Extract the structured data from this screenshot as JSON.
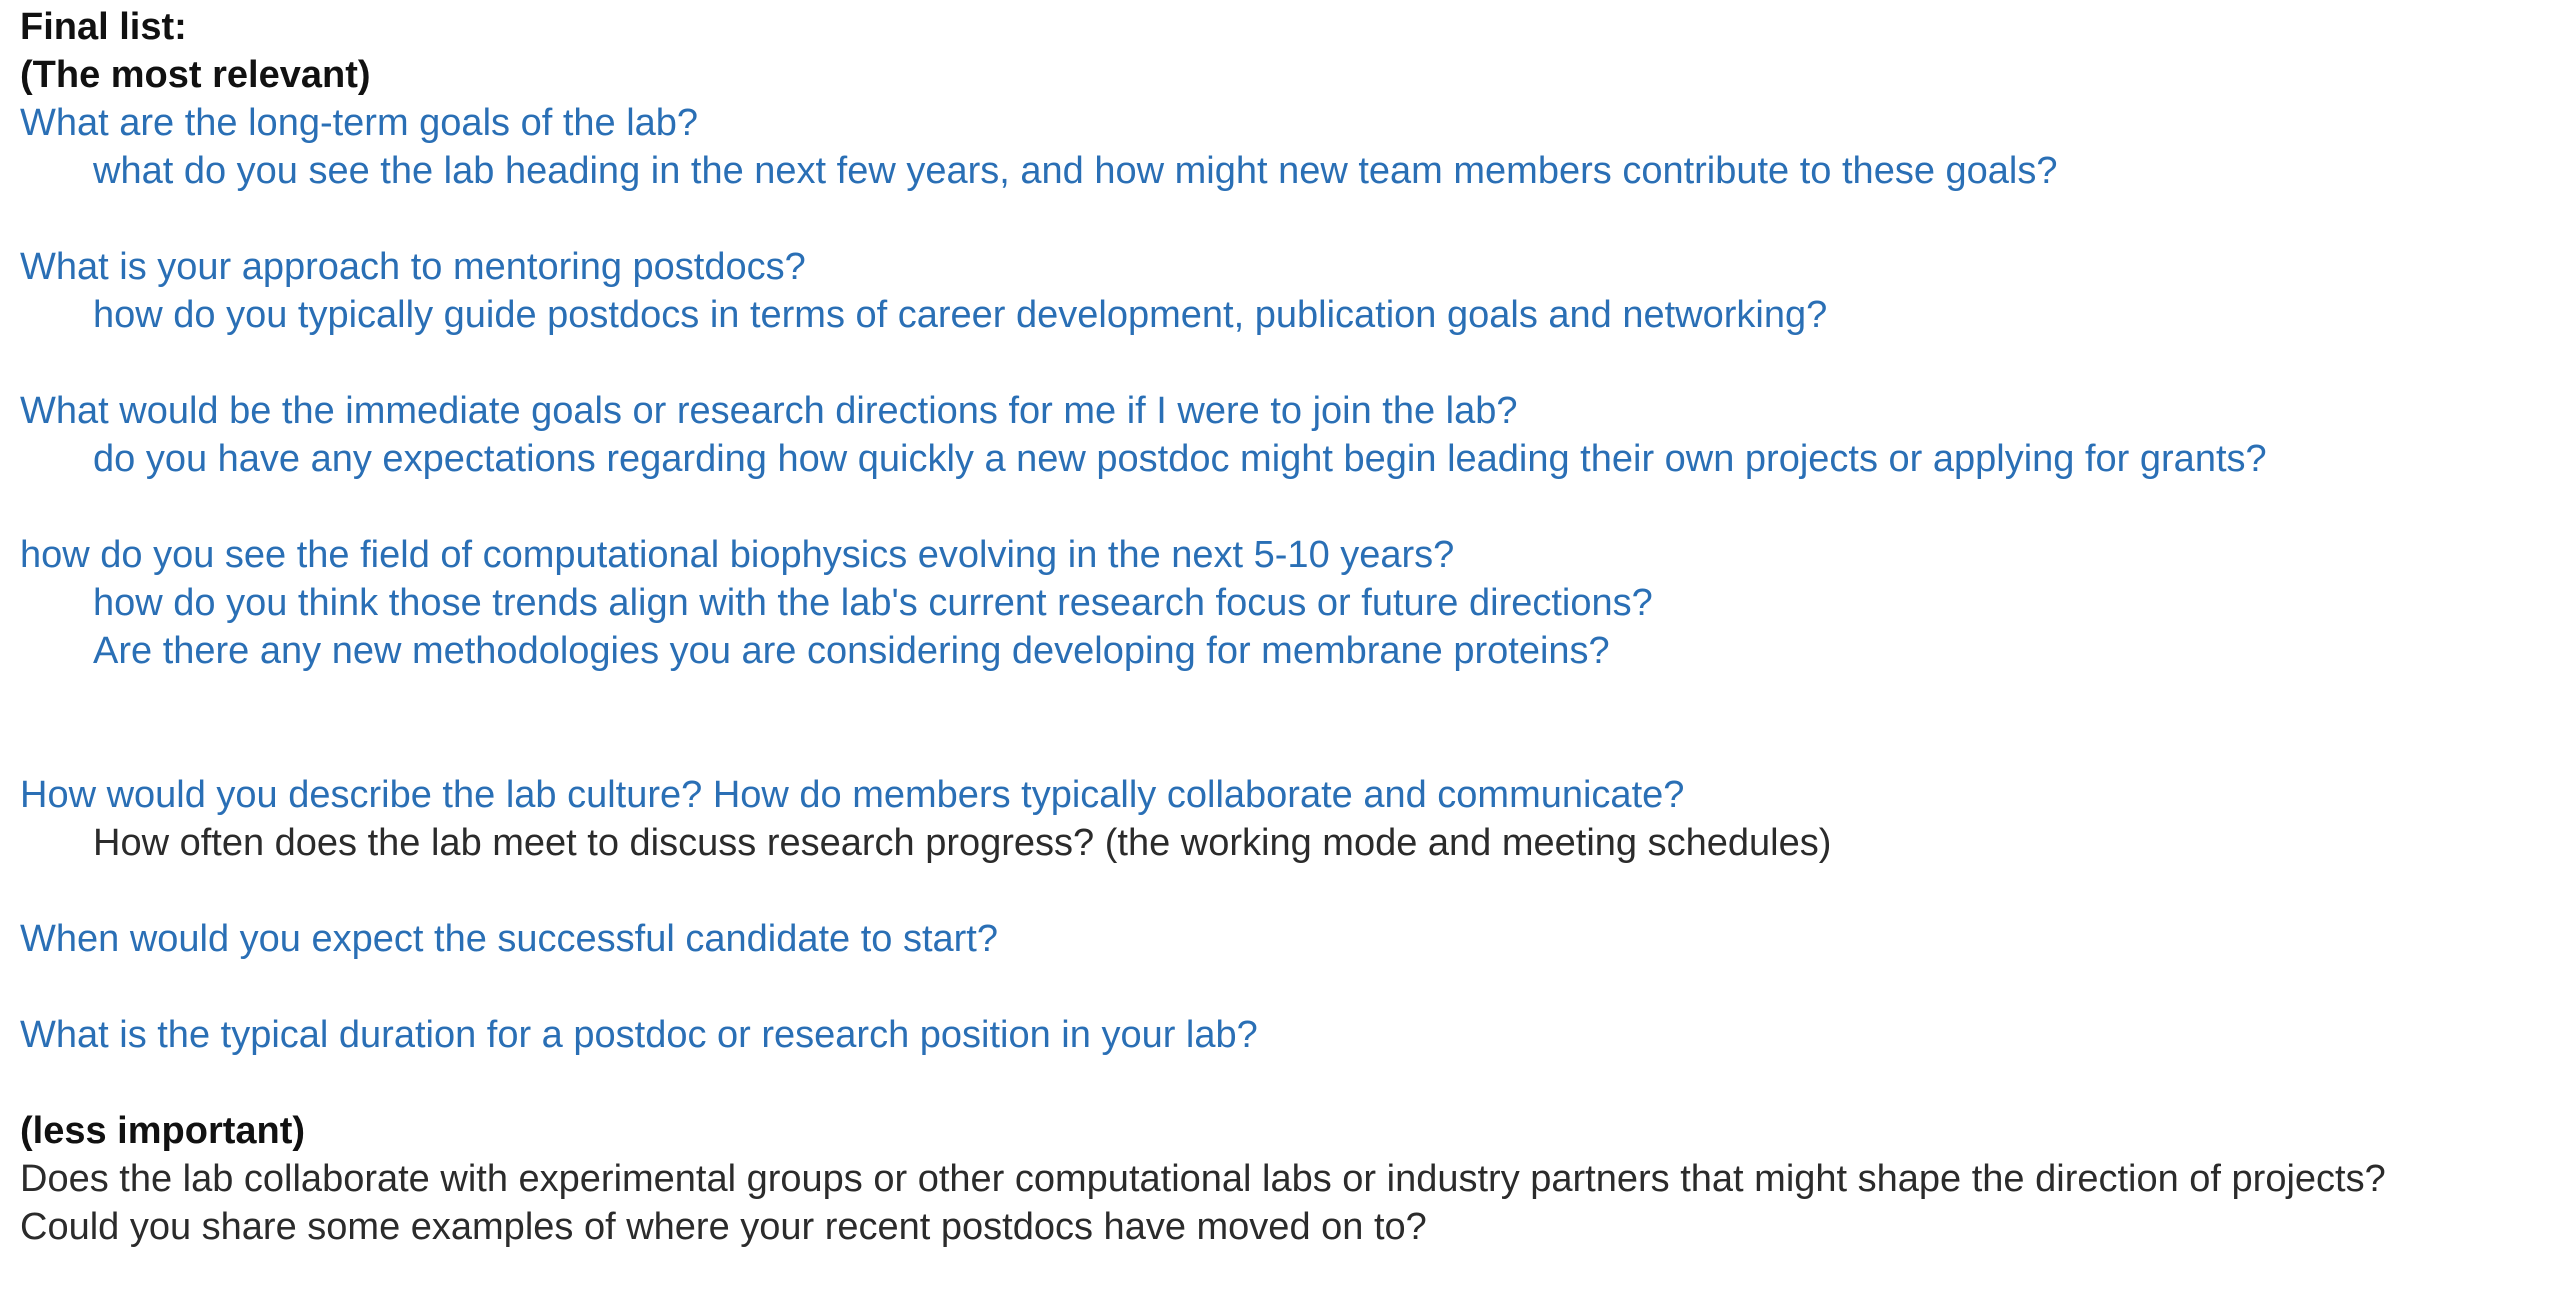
{
  "heading": {
    "title": "Final list:",
    "subtitle": "(The most relevant)"
  },
  "relevant": [
    {
      "question": "What are the long-term goals of the lab?",
      "followups": [
        "what do you see the lab heading in the next few years, and how might new team members contribute to these goals?"
      ]
    },
    {
      "question": "What is your approach to mentoring postdocs?",
      "followups": [
        "how do you typically guide postdocs in terms of career development, publication goals and networking?"
      ]
    },
    {
      "question": "What would be the immediate goals or research directions for me if I were to join the lab?",
      "followups": [
        "do you have any expectations regarding how quickly a new postdoc might begin leading their own projects or applying for grants?"
      ]
    },
    {
      "question": "how do you see the field of computational biophysics evolving in the next 5-10 years?",
      "followups": [
        "how do you think those trends align with the lab's current research focus or future directions?",
        "Are there any new methodologies you are considering developing for membrane proteins?"
      ]
    },
    {
      "question": "How would you describe the lab culture? How do members typically collaborate and communicate?",
      "followups": [
        "How often does the lab meet to discuss research progress? (the working mode and meeting schedules)"
      ]
    },
    {
      "question": "When would you expect the successful candidate to start?",
      "followups": []
    },
    {
      "question": "What is the typical duration for a postdoc or research position in your lab?",
      "followups": []
    }
  ],
  "less_important": {
    "heading": "(less important)",
    "items": [
      "Does the lab collaborate with experimental groups or other computational labs or industry partners that might shape the direction of projects?",
      "Could you share some examples of where your recent postdocs have moved on to?"
    ]
  },
  "colors": {
    "question_blue": "#2a6fb5",
    "body_text": "#2b2b2b",
    "heading_text": "#111111"
  }
}
